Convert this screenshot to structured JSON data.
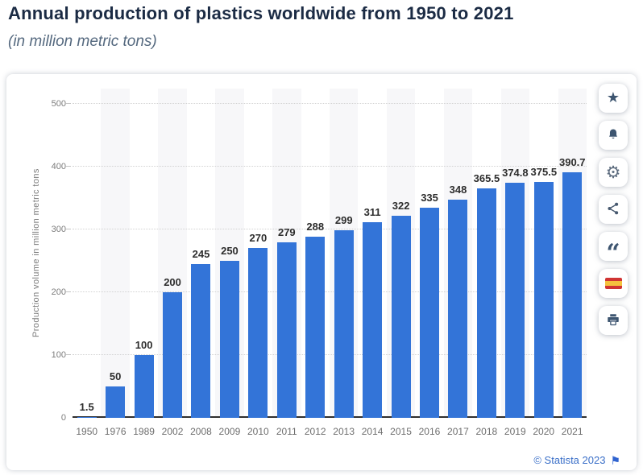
{
  "header": {
    "title": "Annual production of plastics worldwide from 1950 to 2021",
    "subtitle": "(in million metric tons)"
  },
  "chart_data": {
    "type": "bar",
    "title": "Annual production of plastics worldwide from 1950 to 2021",
    "subtitle": "(in million metric tons)",
    "categories": [
      "1950",
      "1976",
      "1989",
      "2002",
      "2008",
      "2009",
      "2010",
      "2011",
      "2012",
      "2013",
      "2014",
      "2015",
      "2016",
      "2017",
      "2018",
      "2019",
      "2020",
      "2021"
    ],
    "values": [
      1.5,
      50,
      100,
      200,
      245,
      250,
      270,
      279,
      288,
      299,
      311,
      322,
      335,
      348,
      365.5,
      374.8,
      375.5,
      390.7
    ],
    "value_labels": [
      "1.5",
      "50",
      "100",
      "200",
      "245",
      "250",
      "270",
      "279",
      "288",
      "299",
      "311",
      "322",
      "335",
      "348",
      "365.5",
      "374.8",
      "375.5",
      "390.7"
    ],
    "xlabel": "",
    "ylabel": "Production volume in million metric tons",
    "ylim": [
      0,
      500
    ],
    "yticks": [
      0,
      100,
      200,
      300,
      400,
      500
    ],
    "grid": "horizontal-dotted",
    "legend": "none",
    "bar_color": "#3374d8",
    "alternating_band_color": "#f7f7f9"
  },
  "toolbar": {
    "buttons": [
      {
        "icon": "star-icon"
      },
      {
        "icon": "bell-icon"
      },
      {
        "icon": "gear-icon"
      },
      {
        "icon": "share-icon"
      },
      {
        "icon": "quote-icon"
      },
      {
        "icon": "spain-flag-icon"
      },
      {
        "icon": "printer-icon"
      }
    ]
  },
  "footer": {
    "copyright": "© Statista 2023",
    "flag_icon": "flag-icon"
  },
  "colors": {
    "title": "#1b2b44",
    "subtitle": "#55697f",
    "bar": "#3374d8",
    "axis_text": "#7c7c7c",
    "value_label": "#2d2d2d",
    "footer_link": "#3a6fc8",
    "icon": "#3d5570"
  }
}
